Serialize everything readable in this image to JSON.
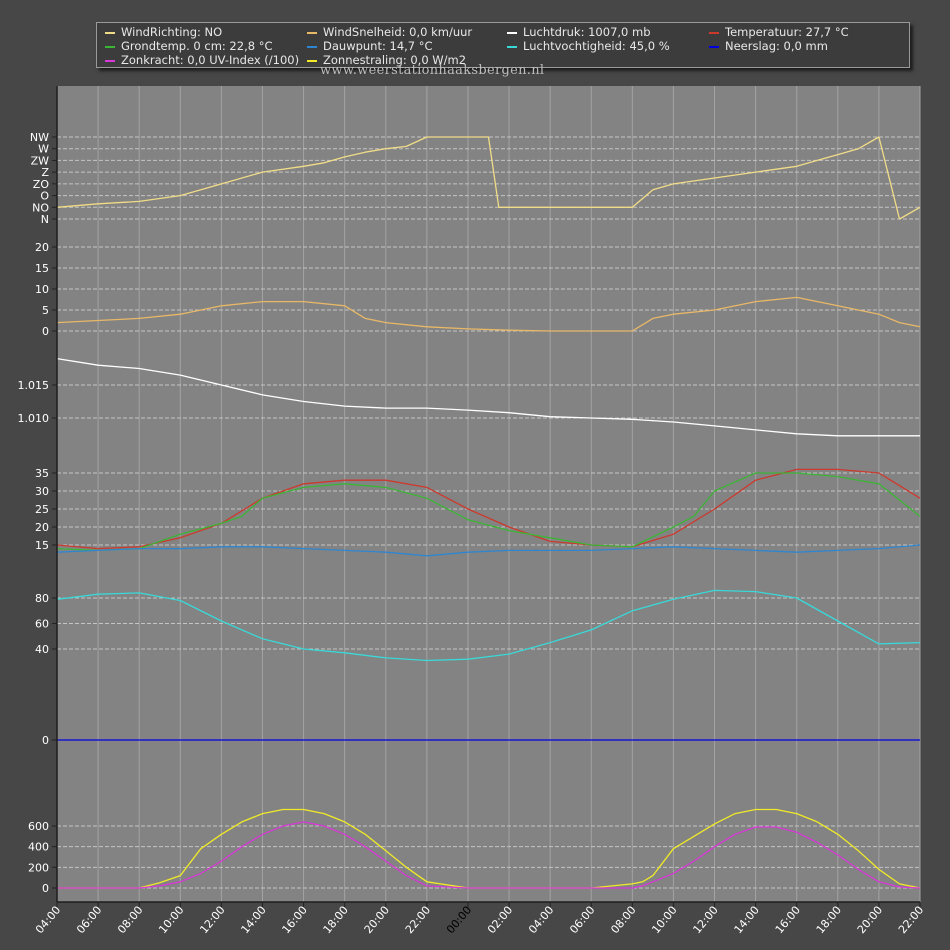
{
  "site_label": "www.weerstationhaaksbergen.nl",
  "colors": {
    "winddir": "#f0dc88",
    "windspeed": "#e8b868",
    "pressure": "#ffffff",
    "temperature": "#cc3a2e",
    "groundtemp": "#3cb436",
    "dewpoint": "#2f86d0",
    "humidity": "#3ad8d8",
    "rain": "#0000dd",
    "uv": "#d838d8",
    "solar": "#f0ea28"
  },
  "legend": [
    {
      "label": "WindRichting: NO",
      "color": "#f0dc88"
    },
    {
      "label": "WindSnelheid: 0,0 km/uur",
      "color": "#e8b868"
    },
    {
      "label": "Luchtdruk: 1007,0 mb",
      "color": "#ffffff"
    },
    {
      "label": "Temperatuur: 27,7 °C",
      "color": "#cc3a2e"
    },
    {
      "label": "Grondtemp. 0 cm: 22,8 °C",
      "color": "#3cb436"
    },
    {
      "label": "Dauwpunt: 14,7 °C",
      "color": "#2f86d0"
    },
    {
      "label": "Luchtvochtigheid: 45,0 %",
      "color": "#3ad8d8"
    },
    {
      "label": "Neerslag: 0,0 mm",
      "color": "#0000dd"
    },
    {
      "label": "Zonkracht: 0,0 UV-Index (/100)",
      "color": "#d838d8"
    },
    {
      "label": "Zonnestraling: 0,0 W/m2",
      "color": "#f0ea28"
    }
  ],
  "chart_data": {
    "type": "line",
    "x_tick_labels": [
      "04:00",
      "06:00",
      "08:00",
      "10:00",
      "12:00",
      "14:00",
      "16:00",
      "18:00",
      "20:00",
      "22:00",
      "00:00",
      "02:00",
      "04:00",
      "06:00",
      "08:00",
      "10:00",
      "12:00",
      "14:00",
      "16:00",
      "18:00",
      "20:00",
      "22:00"
    ],
    "x_hours": [
      4,
      6,
      8,
      10,
      12,
      14,
      16,
      18,
      20,
      22,
      24,
      26,
      28,
      30,
      32,
      34,
      36,
      38,
      40,
      42,
      44,
      46
    ],
    "xlim": [
      4,
      46
    ],
    "grid": true,
    "panels": [
      {
        "name": "winddir",
        "y_ticks": [
          "NW",
          "W",
          "ZW",
          "Z",
          "ZO",
          "O",
          "NO",
          "N"
        ],
        "series": [
          {
            "name": "WindRichting",
            "color_key": "winddir",
            "x": [
              4,
              6,
              8,
              10,
              12,
              14,
              16,
              17,
              18,
              19,
              20,
              21,
              22,
              23,
              24,
              25,
              25.5,
              26,
              28,
              30,
              32,
              33,
              34,
              36,
              38,
              40,
              41,
              42,
              43,
              44,
              45,
              46
            ],
            "y": [
              1,
              1.3,
              1.5,
              2,
              3,
              4,
              4.5,
              4.8,
              5.3,
              5.7,
              6,
              6.2,
              7,
              7,
              7,
              7,
              1,
              1,
              1,
              1,
              1,
              2.5,
              3,
              3.5,
              4,
              4.5,
              5,
              5.5,
              6,
              7,
              0,
              1
            ]
          }
        ]
      },
      {
        "name": "windspeed",
        "y_ticks": [
          0,
          5,
          10,
          15,
          20
        ],
        "ylim": [
          0,
          20
        ],
        "series": [
          {
            "name": "WindSnelheid",
            "color_key": "windspeed",
            "x": [
              4,
              6,
              8,
              10,
              12,
              14,
              16,
              18,
              19,
              20,
              22,
              24,
              26,
              28,
              30,
              32,
              33,
              34,
              36,
              38,
              40,
              42,
              44,
              45,
              46
            ],
            "y": [
              2,
              2.5,
              3,
              4,
              6,
              7,
              7,
              6,
              3,
              2,
              1,
              0.5,
              0.2,
              0,
              0,
              0,
              3,
              4,
              5,
              7,
              8,
              6,
              4,
              2,
              1
            ]
          }
        ]
      },
      {
        "name": "pressure",
        "y_ticks": [
          1.01,
          1.015
        ],
        "series": [
          {
            "name": "Luchtdruk",
            "color_key": "pressure",
            "x": [
              4,
              6,
              8,
              10,
              12,
              14,
              16,
              18,
              20,
              22,
              24,
              26,
              28,
              30,
              32,
              34,
              36,
              38,
              40,
              42,
              44,
              46
            ],
            "y": [
              1.019,
              1.018,
              1.0175,
              1.0165,
              1.015,
              1.0135,
              1.0125,
              1.0118,
              1.0115,
              1.0115,
              1.0112,
              1.0108,
              1.0102,
              1.01,
              1.0098,
              1.0094,
              1.0088,
              1.0082,
              1.0076,
              1.0073,
              1.0073,
              1.0073
            ]
          }
        ]
      },
      {
        "name": "temperature",
        "y_ticks": [
          15,
          20,
          25,
          30,
          35
        ],
        "series": [
          {
            "name": "Temperatuur",
            "color_key": "temperature",
            "x": [
              4,
              6,
              8,
              10,
              12,
              14,
              16,
              18,
              20,
              22,
              24,
              26,
              28,
              30,
              32,
              34,
              36,
              38,
              40,
              42,
              44,
              46
            ],
            "y": [
              15,
              14,
              14.5,
              17,
              21,
              28,
              32,
              33,
              33,
              31,
              25,
              20,
              16,
              15,
              14.5,
              18,
              25,
              33,
              36,
              36,
              35,
              28
            ]
          },
          {
            "name": "Grondtemp. 0 cm",
            "color_key": "groundtemp",
            "x": [
              4,
              6,
              8,
              10,
              12,
              13,
              14,
              16,
              18,
              20,
              22,
              24,
              26,
              28,
              30,
              32,
              34,
              35,
              36,
              38,
              40,
              42,
              44,
              46
            ],
            "y": [
              14,
              13.5,
              14,
              18,
              21,
              23,
              28,
              31,
              32,
              31,
              28,
              22,
              19,
              17,
              15,
              14.5,
              20,
              23,
              30,
              35,
              35,
              34,
              32,
              23
            ]
          },
          {
            "name": "Dauwpunt",
            "color_key": "dewpoint",
            "x": [
              4,
              6,
              8,
              10,
              12,
              14,
              16,
              18,
              20,
              22,
              24,
              26,
              28,
              30,
              32,
              34,
              36,
              38,
              40,
              42,
              44,
              46
            ],
            "y": [
              13,
              13.5,
              14,
              14,
              14.5,
              14.5,
              14,
              13.5,
              13,
              12,
              13,
              13.5,
              13.5,
              13.5,
              14,
              14.5,
              14,
              13.5,
              13,
              13.5,
              14,
              15
            ]
          }
        ]
      },
      {
        "name": "humidity",
        "y_ticks": [
          40,
          60,
          80
        ],
        "series": [
          {
            "name": "Luchtvochtigheid",
            "color_key": "humidity",
            "x": [
              4,
              6,
              8,
              10,
              12,
              14,
              16,
              18,
              20,
              22,
              24,
              26,
              28,
              30,
              32,
              34,
              36,
              38,
              40,
              42,
              44,
              46
            ],
            "y": [
              79,
              83,
              84,
              78,
              62,
              48,
              40,
              37,
              33,
              31,
              32,
              36,
              45,
              55,
              70,
              79,
              86,
              85,
              80,
              62,
              44,
              45
            ]
          }
        ]
      },
      {
        "name": "rain",
        "y_ticks": [
          0
        ],
        "series": [
          {
            "name": "Neerslag",
            "color_key": "rain",
            "x": [
              4,
              46
            ],
            "y": [
              0,
              0
            ]
          }
        ]
      },
      {
        "name": "solar",
        "y_ticks": [
          0,
          200,
          400,
          600
        ],
        "series": [
          {
            "name": "Zonnestraling",
            "color_key": "solar",
            "x": [
              4,
              6,
              8,
              9,
              10,
              11,
              12,
              13,
              14,
              15,
              16,
              17,
              18,
              19,
              20,
              21,
              22,
              24,
              26,
              28,
              30,
              32,
              32.5,
              33,
              34,
              35,
              36,
              37,
              38,
              39,
              40,
              41,
              42,
              43,
              44,
              45,
              46
            ],
            "y": [
              0,
              0,
              0,
              50,
              120,
              380,
              520,
              640,
              720,
              760,
              760,
              720,
              640,
              520,
              360,
              200,
              60,
              0,
              0,
              0,
              0,
              40,
              60,
              120,
              380,
              500,
              620,
              720,
              760,
              760,
              720,
              640,
              520,
              360,
              180,
              40,
              0
            ]
          },
          {
            "name": "Zonkracht",
            "color_key": "uv",
            "x": [
              4,
              6,
              8,
              9,
              10,
              11,
              12,
              13,
              14,
              15,
              16,
              17,
              18,
              19,
              20,
              21,
              22,
              24,
              26,
              28,
              30,
              32,
              32.5,
              33,
              34,
              35,
              36,
              37,
              38,
              39,
              40,
              41,
              42,
              43,
              44,
              45,
              46
            ],
            "y": [
              0,
              0,
              0,
              20,
              60,
              140,
              260,
              400,
              520,
              600,
              640,
              600,
              520,
              400,
              260,
              120,
              20,
              0,
              0,
              0,
              0,
              0,
              20,
              60,
              140,
              260,
              400,
              520,
              590,
              590,
              540,
              440,
              320,
              180,
              60,
              10,
              0
            ]
          }
        ]
      }
    ]
  }
}
